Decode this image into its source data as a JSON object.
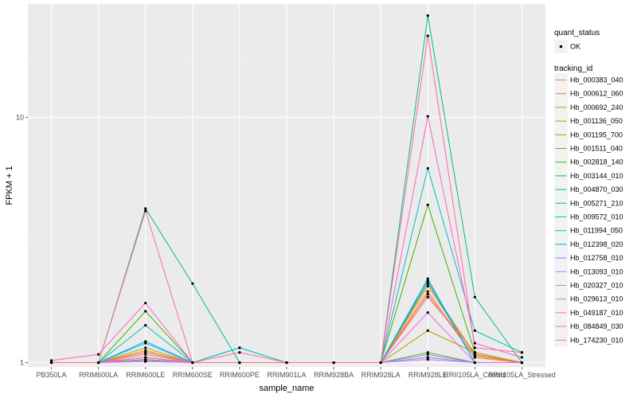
{
  "chart_data": {
    "type": "line",
    "xlabel": "sample_name",
    "ylabel": "FPKM + 1",
    "y_scale": "log10",
    "ylim": [
      0.96,
      29
    ],
    "y_ticks": [
      1,
      10
    ],
    "y_tick_labels": [
      "1",
      "10"
    ],
    "grid": true,
    "background": "#EBEBEB",
    "categories": [
      "PB350LA",
      "RRIM600LA",
      "RRIM600LE",
      "RRIM600SE",
      "RRIM600PE",
      "RRIM901LA",
      "RRIM928BA",
      "RRIM928LA",
      "RRIM928LE",
      "RRII105LA_Control",
      "RRII105LA_Stressed"
    ],
    "legend_position": "right",
    "legend_shape": {
      "title": "quant_status",
      "items": [
        {
          "label": "OK",
          "shape": "point"
        }
      ]
    },
    "legend_color": {
      "title": "tracking_id"
    },
    "series": [
      {
        "name": "Hb_000383_040",
        "color": "#F8766D",
        "values": [
          1,
          1,
          1.08,
          1,
          1,
          1,
          1,
          1,
          1.9,
          1.05,
          1
        ]
      },
      {
        "name": "Hb_000612_060",
        "color": "#EA8331",
        "values": [
          1,
          1,
          1.1,
          1,
          1,
          1,
          1,
          1,
          1.95,
          1.05,
          1
        ]
      },
      {
        "name": "Hb_000692_240",
        "color": "#D89000",
        "values": [
          1,
          1,
          1.12,
          1,
          1,
          1,
          1,
          1,
          2.05,
          1.07,
          1
        ]
      },
      {
        "name": "Hb_001136_050",
        "color": "#C09B00",
        "values": [
          1,
          1,
          1.15,
          1,
          1,
          1,
          1,
          1,
          2.1,
          1.08,
          1
        ]
      },
      {
        "name": "Hb_001195_700",
        "color": "#A3A500",
        "values": [
          1,
          1,
          1.03,
          1,
          1,
          1,
          1,
          1,
          1.35,
          1.1,
          1
        ]
      },
      {
        "name": "Hb_001511_040",
        "color": "#7CAE00",
        "values": [
          1,
          1,
          1.03,
          1,
          1,
          1,
          1,
          1,
          1.1,
          1,
          1
        ]
      },
      {
        "name": "Hb_002818_140",
        "color": "#39B600",
        "values": [
          1,
          1,
          1.62,
          1,
          1,
          1,
          1,
          1,
          4.4,
          1.1,
          1
        ]
      },
      {
        "name": "Hb_003144_010",
        "color": "#00BB4E",
        "values": [
          1,
          1,
          1.05,
          1,
          1,
          1,
          1,
          1,
          1.05,
          1,
          1
        ]
      },
      {
        "name": "Hb_004870_030",
        "color": "#00BF7D",
        "values": [
          1,
          1,
          4.25,
          2.1,
          1,
          1,
          1,
          1,
          26,
          1.85,
          1
        ]
      },
      {
        "name": "Hb_005271_210",
        "color": "#00C1A3",
        "values": [
          1,
          1,
          1.05,
          1,
          1.15,
          1,
          1,
          1,
          2.15,
          1,
          1
        ]
      },
      {
        "name": "Hb_009572_010",
        "color": "#00BFC4",
        "values": [
          1,
          1,
          1.42,
          1,
          1.15,
          1,
          1,
          1,
          6.2,
          1.35,
          1.1
        ]
      },
      {
        "name": "Hb_011994_050",
        "color": "#00B8E5",
        "values": [
          1,
          1,
          1.2,
          1,
          1,
          1,
          1,
          1,
          2.2,
          1,
          1
        ]
      },
      {
        "name": "Hb_012398_020",
        "color": "#00ABFD",
        "values": [
          1,
          1,
          1.22,
          1,
          1,
          1,
          1,
          1,
          2.15,
          1,
          1
        ]
      },
      {
        "name": "Hb_012758_010",
        "color": "#619CFF",
        "values": [
          1,
          1,
          1.02,
          1,
          1,
          1,
          1,
          1,
          1.08,
          1,
          1
        ]
      },
      {
        "name": "Hb_013093_010",
        "color": "#A58AFF",
        "values": [
          1,
          1,
          1.01,
          1,
          1,
          1,
          1,
          1,
          1.03,
          1,
          1
        ]
      },
      {
        "name": "Hb_020327_010",
        "color": "#DB72FB",
        "values": [
          1,
          1,
          1.02,
          1,
          1,
          1,
          1,
          1,
          1.05,
          1,
          1
        ]
      },
      {
        "name": "Hb_029613_010",
        "color": "#F564E3",
        "values": [
          1,
          1,
          1.05,
          1,
          1,
          1,
          1,
          1,
          1.6,
          1,
          1
        ]
      },
      {
        "name": "Hb_049187_010",
        "color": "#FF61C3",
        "values": [
          1.02,
          1.08,
          1.75,
          1,
          1,
          1,
          1,
          1,
          10.1,
          1.2,
          1.05
        ]
      },
      {
        "name": "Hb_084849_030",
        "color": "#FF67A4",
        "values": [
          1,
          1,
          4.15,
          1,
          1.1,
          1,
          1,
          1,
          21.5,
          1.15,
          1.1
        ]
      },
      {
        "name": "Hb_174230_010",
        "color": "#FC717F",
        "values": [
          1,
          1,
          1.1,
          1,
          1,
          1,
          1,
          1,
          1.85,
          1.1,
          1
        ]
      }
    ]
  }
}
